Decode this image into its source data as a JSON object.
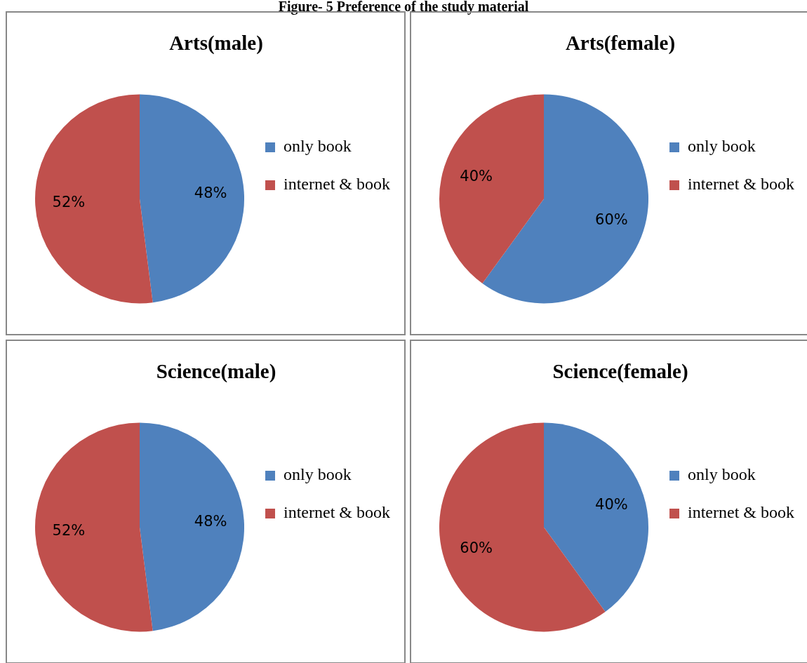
{
  "chart_data": [
    {
      "type": "pie",
      "title": "Arts(male)",
      "annotations": [
        "Figure- 5 Preference of the study material"
      ],
      "categories": [
        "only book",
        "internet & book"
      ],
      "values": [
        48,
        52
      ],
      "colors": [
        "#4f81bd",
        "#c0504d"
      ],
      "value_labels": [
        "48%",
        "52%"
      ],
      "legend": "right"
    },
    {
      "type": "pie",
      "title": "Arts(female)",
      "categories": [
        "only book",
        "internet & book"
      ],
      "values": [
        60,
        40
      ],
      "colors": [
        "#4f81bd",
        "#c0504d"
      ],
      "value_labels": [
        "60%",
        "40%"
      ],
      "legend": "right"
    },
    {
      "type": "pie",
      "title": "Science(male)",
      "categories": [
        "only book",
        "internet & book"
      ],
      "values": [
        48,
        52
      ],
      "colors": [
        "#4f81bd",
        "#c0504d"
      ],
      "value_labels": [
        "48%",
        "52%"
      ],
      "legend": "right"
    },
    {
      "type": "pie",
      "title": "Science(female)",
      "categories": [
        "only book",
        "internet & book"
      ],
      "values": [
        40,
        60
      ],
      "colors": [
        "#4f81bd",
        "#c0504d"
      ],
      "value_labels": [
        "40%",
        "60%"
      ],
      "legend": "right"
    }
  ]
}
